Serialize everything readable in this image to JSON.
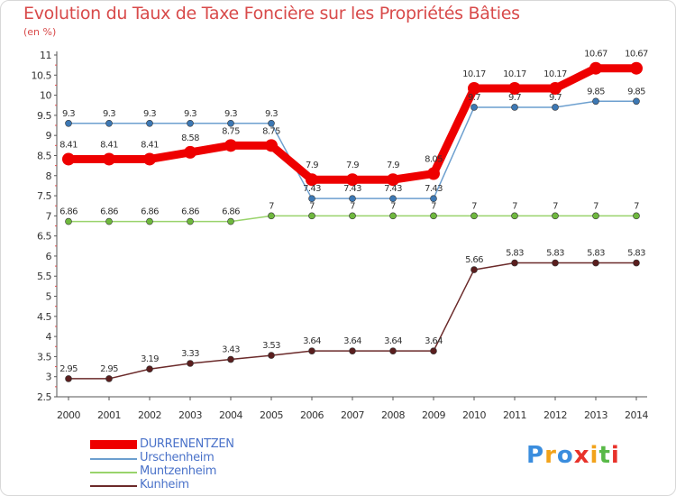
{
  "chart_data": {
    "type": "line",
    "title": "Evolution du Taux de Taxe Foncière sur les Propriétés Bâties",
    "ylabel": "(en %)",
    "xlabel": "",
    "x": [
      "2000",
      "2001",
      "2002",
      "2003",
      "2004",
      "2005",
      "2006",
      "2007",
      "2008",
      "2009",
      "2010",
      "2011",
      "2012",
      "2013",
      "2014"
    ],
    "ylim": [
      2.5,
      11
    ],
    "yticks": [
      "2.5",
      "3",
      "3.5",
      "4",
      "4.5",
      "5",
      "5.5",
      "6",
      "6.5",
      "7",
      "7.5",
      "8",
      "8.5",
      "9",
      "9.5",
      "10",
      "10.5",
      "11"
    ],
    "grid": false,
    "legend_position": "bottom-left",
    "series": [
      {
        "name": "Urschenheim",
        "color": "#6c9fcf",
        "marker": "#3d78b4",
        "values": [
          9.3,
          9.3,
          9.3,
          9.3,
          9.3,
          9.3,
          7.43,
          7.43,
          7.43,
          7.43,
          9.7,
          9.7,
          9.7,
          9.85,
          9.85
        ],
        "labels": [
          "9.3",
          "9.3",
          "9.3",
          "9.3",
          "9.3",
          "9.3",
          "7.43",
          "7.43",
          "7.43",
          "7.43",
          "9.7",
          "9.7",
          "9.7",
          "9.85",
          "9.85"
        ]
      },
      {
        "name": "Muntzenheim",
        "color": "#99d36b",
        "marker": "#6fb83e",
        "values": [
          6.86,
          6.86,
          6.86,
          6.86,
          6.86,
          7,
          7,
          7,
          7,
          7,
          7,
          7,
          7,
          7,
          7
        ],
        "labels": [
          "6.86",
          "6.86",
          "6.86",
          "6.86",
          "6.86",
          "7",
          "7",
          "7",
          "7",
          "7",
          "7",
          "7",
          "7",
          "7",
          "7"
        ]
      },
      {
        "name": "Kunheim",
        "color": "#6b2a2a",
        "marker": "#5a1e1e",
        "values": [
          2.95,
          2.95,
          3.19,
          3.33,
          3.43,
          3.53,
          3.64,
          3.64,
          3.64,
          3.64,
          5.66,
          5.83,
          5.83,
          5.83,
          5.83
        ],
        "labels": [
          "2.95",
          "2.95",
          "3.19",
          "3.33",
          "3.43",
          "3.53",
          "3.64",
          "3.64",
          "3.64",
          "3.64",
          "5.66",
          "5.83",
          "5.83",
          "5.83",
          "5.83"
        ]
      },
      {
        "name": "DURRENENTZEN",
        "color": "#ee0000",
        "marker": "#ee0000",
        "values": [
          8.41,
          8.41,
          8.41,
          8.58,
          8.75,
          8.75,
          7.9,
          7.9,
          7.9,
          8.05,
          10.17,
          10.17,
          10.17,
          10.67,
          10.67
        ],
        "labels": [
          "8.41",
          "8.41",
          "8.41",
          "8.58",
          "8.75",
          "8.75",
          "7.9",
          "7.9",
          "7.9",
          "8.05",
          "10.17",
          "10.17",
          "10.17",
          "10.67",
          "10.67"
        ]
      }
    ],
    "legend": [
      "DURRENENTZEN",
      "Urschenheim",
      "Muntzenheim",
      "Kunheim"
    ]
  },
  "logo": {
    "text": "Proxiti",
    "letters": [
      "P",
      "r",
      "o",
      "x",
      "i",
      "t",
      "i"
    ],
    "colors": [
      "#3a8dde",
      "#f2a31b",
      "#3a8dde",
      "#e8322b",
      "#f2a31b",
      "#58b947",
      "#e8322b"
    ]
  }
}
